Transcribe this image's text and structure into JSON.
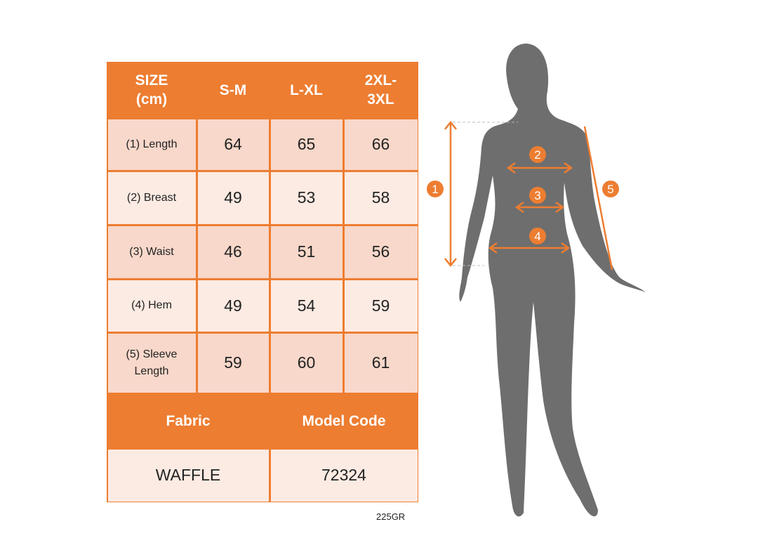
{
  "table": {
    "header": [
      "SIZE\n(cm)",
      "S-M",
      "L-XL",
      "2XL-\n3XL"
    ],
    "rows": [
      {
        "label": "(1) Length",
        "values": [
          "64",
          "65",
          "66"
        ]
      },
      {
        "label": "(2) Breast",
        "values": [
          "49",
          "53",
          "58"
        ]
      },
      {
        "label": "(3) Waist",
        "values": [
          "46",
          "51",
          "56"
        ]
      },
      {
        "label": "(4) Hem",
        "values": [
          "49",
          "54",
          "59"
        ]
      },
      {
        "label": "(5) Sleeve\nLength",
        "values": [
          "59",
          "60",
          "61"
        ]
      }
    ],
    "footer_headers": [
      "Fabric",
      "Model Code"
    ],
    "footer_values": [
      "WAFFLE",
      "72324"
    ]
  },
  "product_code": "225GR",
  "figure": {
    "markers": [
      "1",
      "2",
      "3",
      "4",
      "5"
    ]
  },
  "colors": {
    "accent": "#ED7D31",
    "row_dark": "#F8D8CA",
    "row_light": "#FCEBE3",
    "silhouette": "#6E6E6E"
  }
}
